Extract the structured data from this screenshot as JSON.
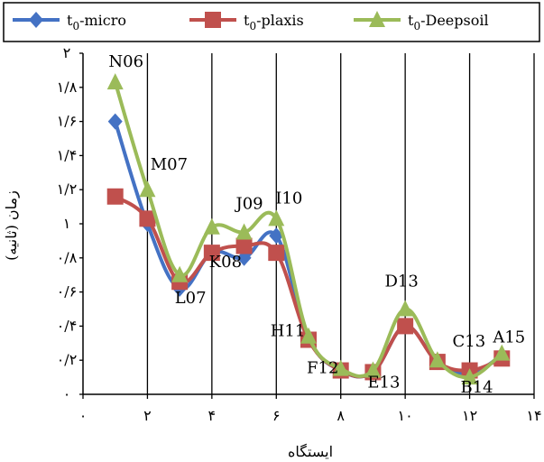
{
  "chart_data": {
    "type": "line",
    "xlabel": "ایستگاه",
    "ylabel": "زمان (ثانیه)",
    "xlim": [
      0,
      14
    ],
    "ylim": [
      0,
      2
    ],
    "xticks": [
      0,
      2,
      4,
      6,
      8,
      10,
      12,
      14
    ],
    "xtick_labels": [
      "۰",
      "۲",
      "۴",
      "۶",
      "۸",
      "۱۰",
      "۱۲",
      "۱۴"
    ],
    "yticks": [
      0,
      0.2,
      0.4,
      0.6,
      0.8,
      1,
      1.2,
      1.4,
      1.6,
      1.8,
      2
    ],
    "ytick_labels": [
      "۰",
      "۰/۲",
      "۰/۴",
      "۰/۶",
      "۰/۸",
      "۱",
      "۱/۲",
      "۱/۴",
      "۱/۶",
      "۱/۸",
      "۲"
    ],
    "grid": "vertical",
    "legend_position": "top",
    "x": [
      1,
      2,
      3,
      4,
      5,
      6,
      7,
      8,
      9,
      10,
      11,
      12,
      13
    ],
    "point_labels": [
      "N06",
      "M07",
      "L07",
      "K08",
      "J09",
      "I10",
      "H11",
      "F12",
      "E13",
      "D13",
      "C13",
      "B14",
      "A15"
    ],
    "series": [
      {
        "name": "micro",
        "legend_parts": [
          "t",
          "0",
          "-micro"
        ],
        "color": "#4472C4",
        "marker": "diamond",
        "values": [
          1.6,
          1.0,
          0.62,
          0.83,
          0.8,
          0.93,
          0.33,
          0.14,
          0.13,
          0.4,
          0.19,
          0.12,
          0.23
        ]
      },
      {
        "name": "plaxis",
        "legend_parts": [
          "t",
          "0",
          "-plaxis"
        ],
        "color": "#C0504D",
        "marker": "square",
        "values": [
          1.16,
          1.03,
          0.66,
          0.83,
          0.87,
          0.83,
          0.32,
          0.14,
          0.13,
          0.4,
          0.19,
          0.14,
          0.21
        ]
      },
      {
        "name": "Deepsoil",
        "legend_parts": [
          "t",
          "0",
          "-Deepsoil"
        ],
        "color": "#9BBB59",
        "marker": "triangle",
        "values": [
          1.83,
          1.2,
          0.7,
          0.98,
          0.95,
          1.03,
          0.34,
          0.15,
          0.14,
          0.5,
          0.2,
          0.1,
          0.24
        ]
      }
    ]
  }
}
